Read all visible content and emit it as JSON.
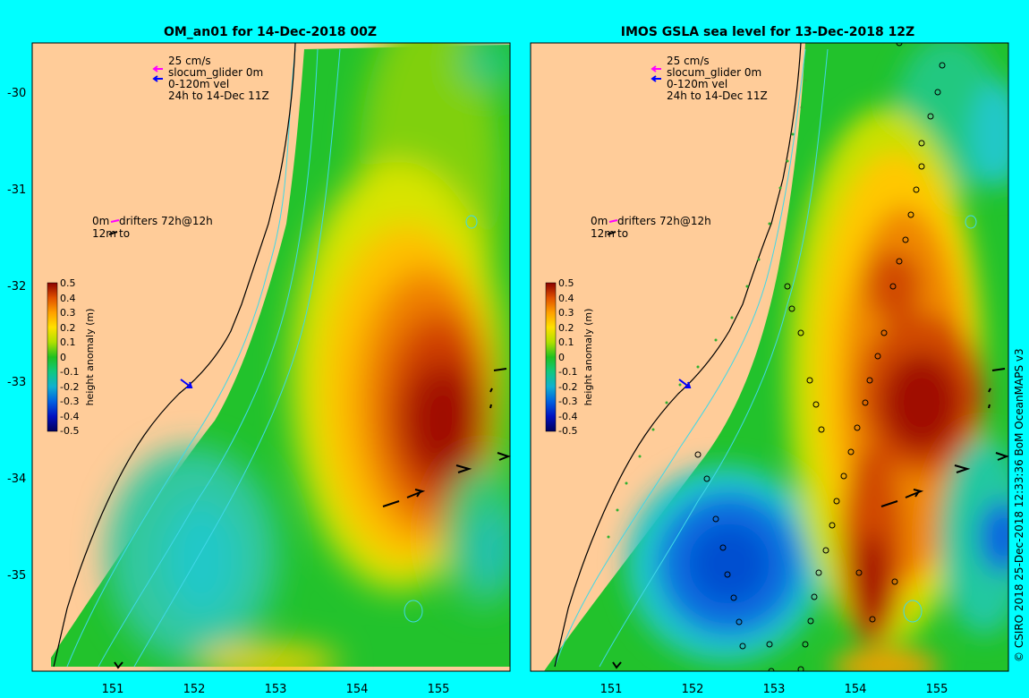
{
  "panels": [
    {
      "title": "OM_an01 for 14-Dec-2018 00Z",
      "legend": {
        "scale": "25 cm/s",
        "glider": "slocum_glider 0m",
        "vel": "0-120m vel",
        "window": "24h to 14-Dec 11Z",
        "drifter_top": "0m",
        "drifter_label": "drifters 72h@12h",
        "drifter_bottom": "12m",
        "drifter_to": "to"
      }
    },
    {
      "title": "IMOS GSLA sea level  for 13-Dec-2018 12Z",
      "legend": {
        "scale": "25 cm/s",
        "glider": "slocum_glider 0m",
        "vel": "0-120m vel",
        "window": "24h to 14-Dec 11Z",
        "drifter_top": "0m",
        "drifter_label": "drifters 72h@12h",
        "drifter_bottom": "12m",
        "drifter_to": "to"
      }
    }
  ],
  "axes": {
    "lat_ticks": [
      "-30",
      "-31",
      "-32",
      "-33",
      "-34",
      "-35"
    ],
    "lon_ticks": [
      "151",
      "152",
      "153",
      "154",
      "155"
    ]
  },
  "colorbar": {
    "label": "height anomaly (m)",
    "ticks": [
      "0.5",
      "0.4",
      "0.3",
      "0.2",
      "0.1",
      "0",
      "-0.1",
      "-0.2",
      "-0.3",
      "-0.4",
      "-0.5"
    ]
  },
  "credit": "© CSIRO 2018   25-Dec-2018 12:33:36 BoM OceanMAPS v3",
  "colors": {
    "background": "#00ffff",
    "land": "#ffcc99",
    "glider_arrow": "#ff00ff",
    "vel_arrow": "#0000ff"
  }
}
